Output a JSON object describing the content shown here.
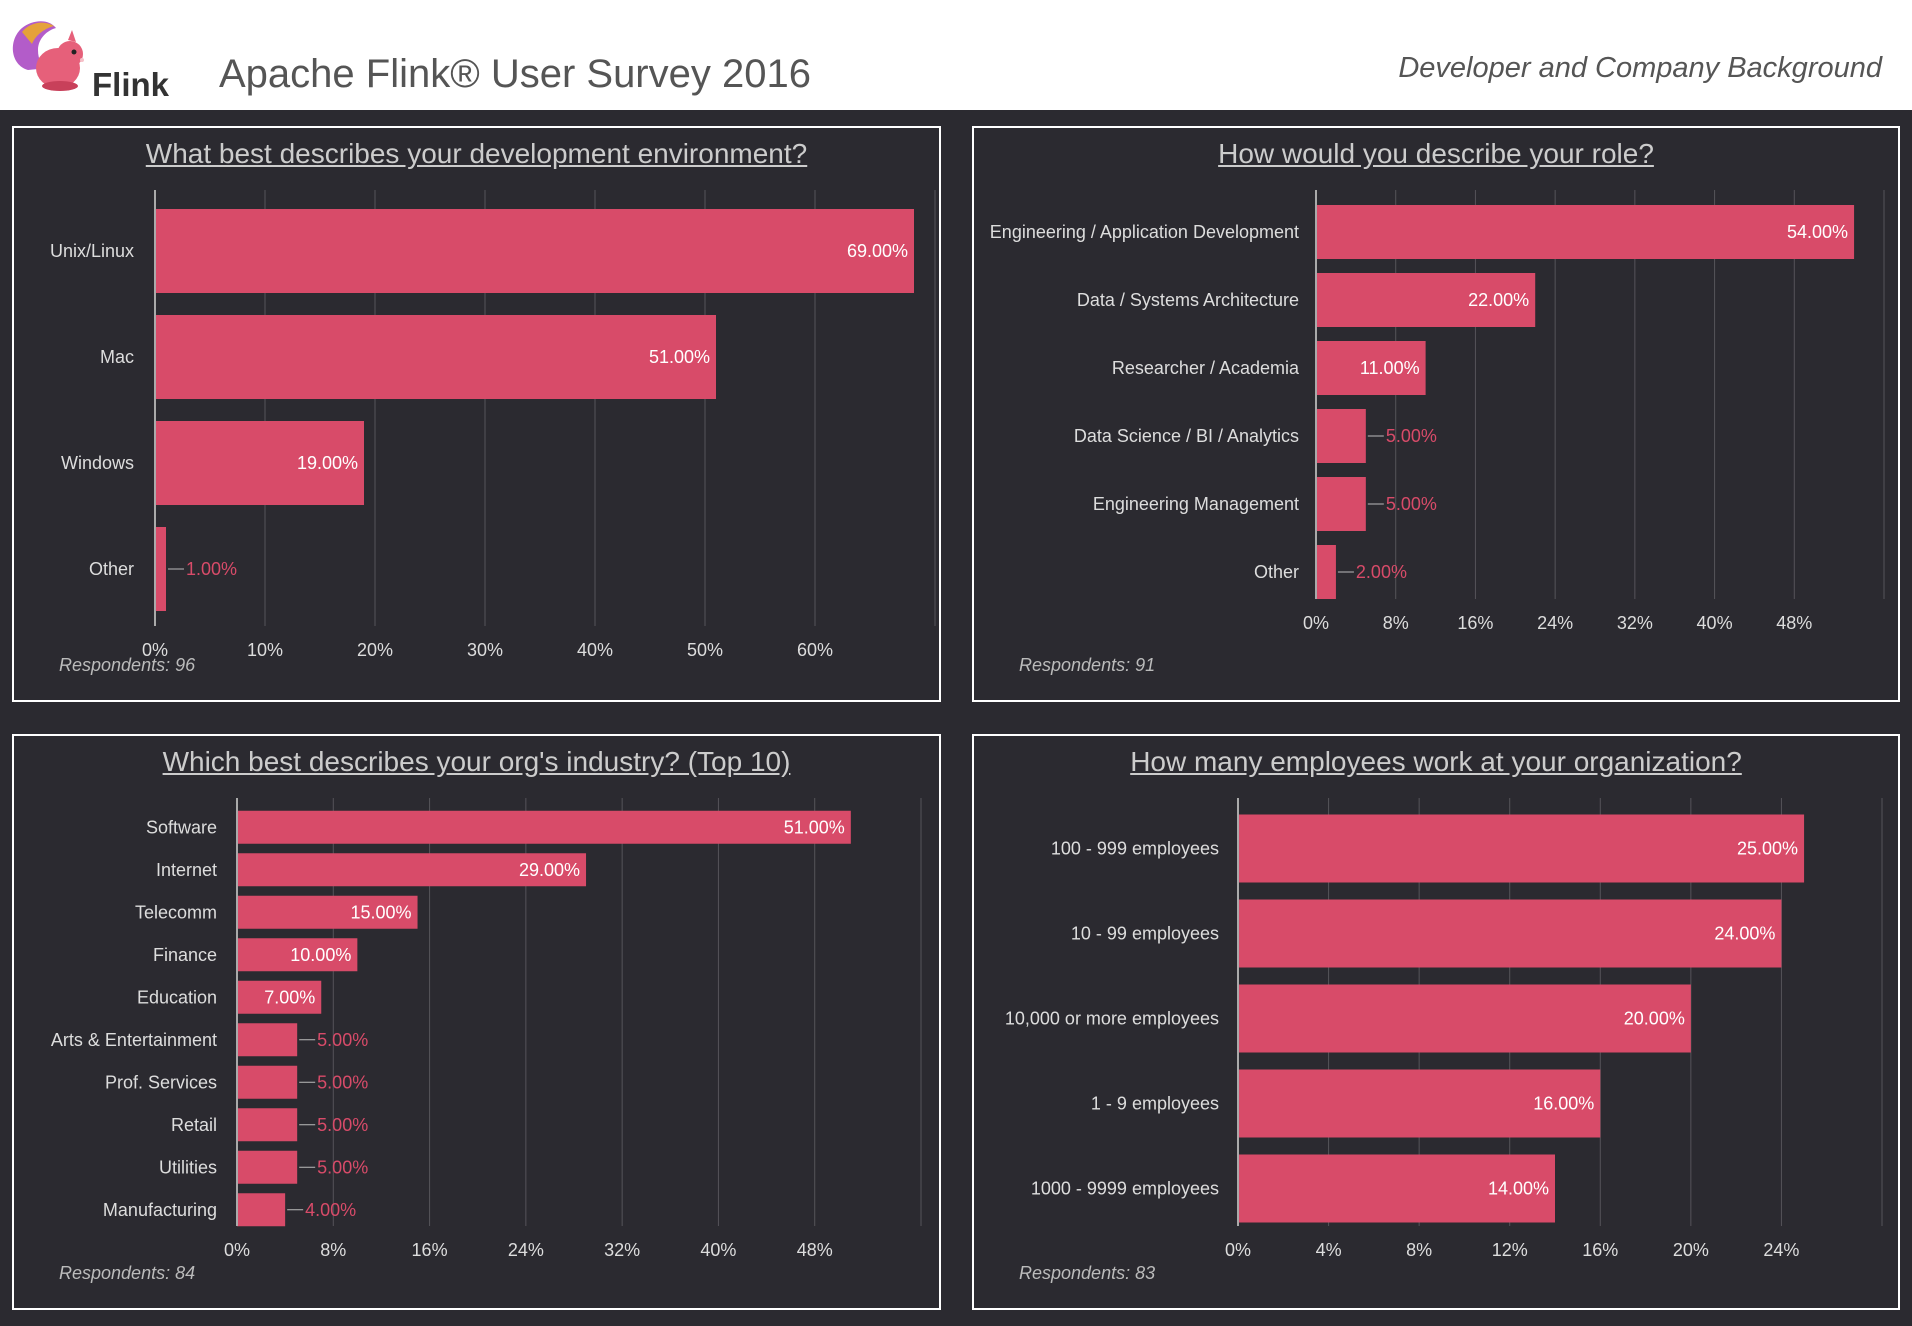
{
  "header": {
    "logo_text": "Flink",
    "title": "Apache Flink® User Survey 2016",
    "subtitle": "Developer and Company Background"
  },
  "colors": {
    "bar": "#d84b69",
    "label_out": "#d84b69",
    "grid": "#55545a",
    "axis": "#aaaaaa",
    "text": "#dddddd"
  },
  "respondents_label": "Respondents:",
  "chart_data": [
    {
      "type": "bar",
      "orientation": "horizontal",
      "title": "What best describes your development environment?",
      "respondents": "96",
      "categories": [
        "Unix/Linux",
        "Mac",
        "Windows",
        "Other"
      ],
      "values": [
        69,
        51,
        19,
        1
      ],
      "value_labels": [
        "69.00%",
        "51.00%",
        "19.00%",
        "1.00%"
      ],
      "xlim": [
        0,
        70
      ],
      "xticks": [
        0,
        10,
        20,
        30,
        40,
        50,
        60
      ],
      "xtick_labels": [
        "0%",
        "10%",
        "20%",
        "30%",
        "40%",
        "50%",
        "60%"
      ],
      "grid": true
    },
    {
      "type": "bar",
      "orientation": "horizontal",
      "title": "How would you describe your role?",
      "respondents": "91",
      "categories": [
        "Engineering / Application Development",
        "Data / Systems Architecture",
        "Researcher / Academia",
        "Data Science / BI / Analytics",
        "Engineering Management",
        "Other"
      ],
      "values": [
        54,
        22,
        11,
        5,
        5,
        2
      ],
      "value_labels": [
        "54.00%",
        "22.00%",
        "11.00%",
        "5.00%",
        "5.00%",
        "2.00%"
      ],
      "xlim": [
        0,
        56
      ],
      "xticks": [
        0,
        8,
        16,
        24,
        32,
        40,
        48
      ],
      "xtick_labels": [
        "0%",
        "8%",
        "16%",
        "24%",
        "32%",
        "40%",
        "48%"
      ],
      "grid": true
    },
    {
      "type": "bar",
      "orientation": "horizontal",
      "title": "Which best describes your org's industry? (Top 10)",
      "respondents": "84",
      "categories": [
        "Software",
        "Internet",
        "Telecomm",
        "Finance",
        "Education",
        "Arts & Entertainment",
        "Prof. Services",
        "Retail",
        "Utilities",
        "Manufacturing"
      ],
      "values": [
        51,
        29,
        15,
        10,
        7,
        5,
        5,
        5,
        5,
        4
      ],
      "value_labels": [
        "51.00%",
        "29.00%",
        "15.00%",
        "10.00%",
        "7.00%",
        "5.00%",
        "5.00%",
        "5.00%",
        "5.00%",
        "4.00%"
      ],
      "xlim": [
        0,
        56
      ],
      "xticks": [
        0,
        8,
        16,
        24,
        32,
        40,
        48
      ],
      "xtick_labels": [
        "0%",
        "8%",
        "16%",
        "24%",
        "32%",
        "40%",
        "48%"
      ],
      "grid": true
    },
    {
      "type": "bar",
      "orientation": "horizontal",
      "title": "How many employees work at your organization?",
      "respondents": "83",
      "categories": [
        "100 - 999 employees",
        "10 - 99 employees",
        "10,000 or more employees",
        "1 - 9 employees",
        "1000 - 9999 employees"
      ],
      "values": [
        25,
        24,
        20,
        16,
        14
      ],
      "value_labels": [
        "25.00%",
        "24.00%",
        "20.00%",
        "16.00%",
        "14.00%"
      ],
      "xlim": [
        0,
        28
      ],
      "xticks": [
        0,
        4,
        8,
        12,
        16,
        20,
        24
      ],
      "xtick_labels": [
        "0%",
        "4%",
        "8%",
        "12%",
        "16%",
        "20%",
        "24%"
      ],
      "grid": true
    }
  ]
}
